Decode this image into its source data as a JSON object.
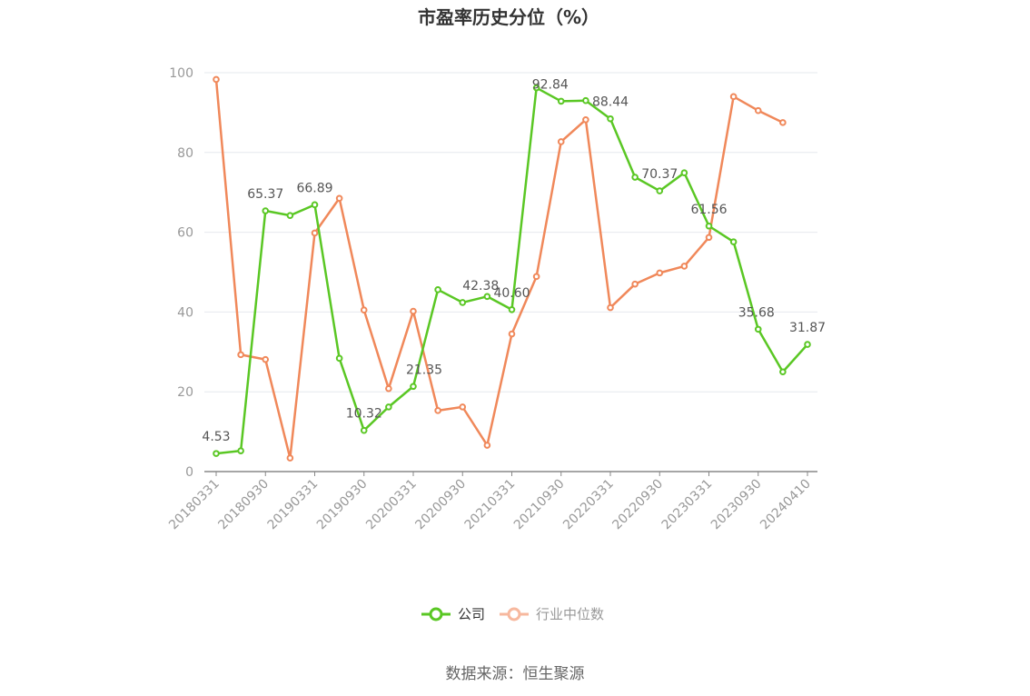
{
  "chart_data": {
    "type": "line",
    "title": "市盈率历史分位（%）",
    "xlabel": "",
    "ylabel": "",
    "ylim": [
      0,
      100
    ],
    "yticks": [
      0,
      20,
      40,
      60,
      80,
      100
    ],
    "x": [
      "20180331",
      "20180630",
      "20180930",
      "20181231",
      "20190331",
      "20190630",
      "20190930",
      "20191231",
      "20200331",
      "20200630",
      "20200930",
      "20201231",
      "20210331",
      "20210630",
      "20210930",
      "20211231",
      "20220331",
      "20220630",
      "20220930",
      "20221231",
      "20230331",
      "20230630",
      "20230930",
      "20231231",
      "20240410"
    ],
    "xticklabels": [
      "20180331",
      "20180930",
      "20190331",
      "20190930",
      "20200331",
      "20200930",
      "20210331",
      "20210930",
      "20220331",
      "20220930",
      "20230331",
      "20230930",
      "20240410"
    ],
    "series": [
      {
        "name": "公司",
        "color": "#5ac724",
        "values": [
          4.53,
          5.2,
          65.37,
          64.2,
          66.89,
          28.4,
          10.32,
          16.2,
          21.35,
          45.6,
          42.38,
          43.9,
          40.6,
          96.2,
          92.84,
          93.0,
          88.44,
          73.8,
          70.37,
          74.9,
          61.56,
          57.6,
          35.68,
          25.0,
          31.87
        ],
        "labeled_points": [
          {
            "index": 0,
            "text": "4.53"
          },
          {
            "index": 2,
            "text": "65.37"
          },
          {
            "index": 4,
            "text": "66.89"
          },
          {
            "index": 6,
            "text": "10.32"
          },
          {
            "index": 8,
            "text": "21.35"
          },
          {
            "index": 10,
            "text": "42.38"
          },
          {
            "index": 12,
            "text": "40.60"
          },
          {
            "index": 14,
            "text": "92.84"
          },
          {
            "index": 16,
            "text": "88.44"
          },
          {
            "index": 18,
            "text": "70.37"
          },
          {
            "index": 20,
            "text": "61.56"
          },
          {
            "index": 22,
            "text": "35.68"
          },
          {
            "index": 24,
            "text": "31.87"
          }
        ]
      },
      {
        "name": "行业中位数",
        "color": "#f0885a",
        "values": [
          98.3,
          29.3,
          28.1,
          3.4,
          59.8,
          68.5,
          40.5,
          20.8,
          40.2,
          15.3,
          16.2,
          6.6,
          34.5,
          48.9,
          82.7,
          88.2,
          41.1,
          47.0,
          49.8,
          51.5,
          58.7,
          94.0,
          90.5,
          87.5,
          null
        ],
        "labeled_points": []
      }
    ],
    "legend_position": "bottom",
    "grid": true
  },
  "legend": {
    "items": [
      {
        "label": "公司",
        "color": "#5ac724",
        "state": "active"
      },
      {
        "label": "行业中位数",
        "color": "#f7b89e",
        "state": "inactive"
      }
    ]
  },
  "footer": {
    "source": "数据来源：恒生聚源"
  }
}
